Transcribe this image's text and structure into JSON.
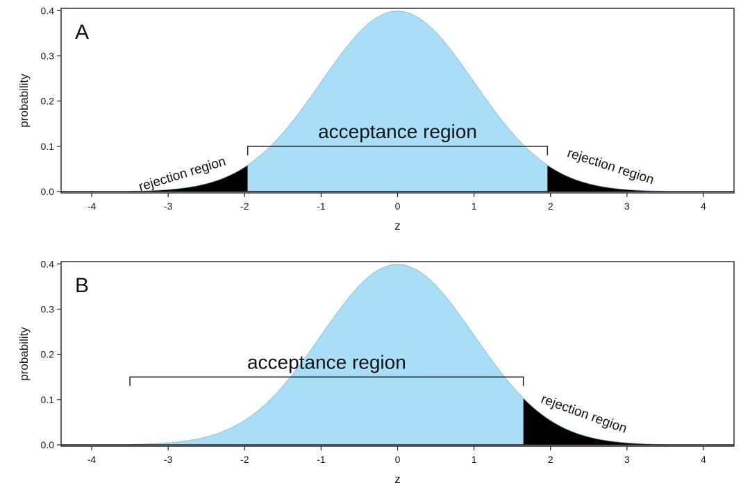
{
  "chart_data": [
    {
      "type": "area",
      "panel_label": "A",
      "distribution": "standard normal density",
      "xlabel": "z",
      "ylabel": "probability",
      "xlim": [
        -4.4,
        4.4
      ],
      "ylim": [
        -0.003,
        0.405
      ],
      "xticks": [
        -4,
        -3,
        -2,
        -1,
        0,
        1,
        2,
        3,
        4
      ],
      "yticks": [
        "0.0",
        "0.1",
        "0.2",
        "0.3",
        "0.4"
      ],
      "curve_range": [
        -3.5,
        3.5
      ],
      "regions": [
        {
          "kind": "rejection",
          "from": -3.5,
          "to": -1.96,
          "color": "#000000"
        },
        {
          "kind": "acceptance",
          "from": -1.96,
          "to": 1.96,
          "color": "#a8def8"
        },
        {
          "kind": "rejection",
          "from": 1.96,
          "to": 3.5,
          "color": "#000000"
        }
      ],
      "acceptance_bracket": {
        "from": -1.96,
        "to": 1.96,
        "y": 0.1
      },
      "labels": {
        "panel": "A",
        "acceptance": "acceptance region",
        "rejection_left": "rejection region",
        "rejection_right": "rejection region"
      }
    },
    {
      "type": "area",
      "panel_label": "B",
      "distribution": "standard normal density",
      "xlabel": "z",
      "ylabel": "probability",
      "xlim": [
        -4.4,
        4.4
      ],
      "ylim": [
        -0.003,
        0.405
      ],
      "xticks": [
        -4,
        -3,
        -2,
        -1,
        0,
        1,
        2,
        3,
        4
      ],
      "yticks": [
        "0.0",
        "0.1",
        "0.2",
        "0.3",
        "0.4"
      ],
      "curve_range": [
        -3.5,
        3.5
      ],
      "regions": [
        {
          "kind": "acceptance",
          "from": -3.5,
          "to": 1.645,
          "color": "#a8def8"
        },
        {
          "kind": "rejection",
          "from": 1.645,
          "to": 3.5,
          "color": "#000000"
        }
      ],
      "acceptance_bracket": {
        "from": -3.5,
        "to": 1.645,
        "y": 0.15
      },
      "labels": {
        "panel": "B",
        "acceptance": "acceptance region",
        "rejection_right": "rejection region"
      }
    }
  ]
}
